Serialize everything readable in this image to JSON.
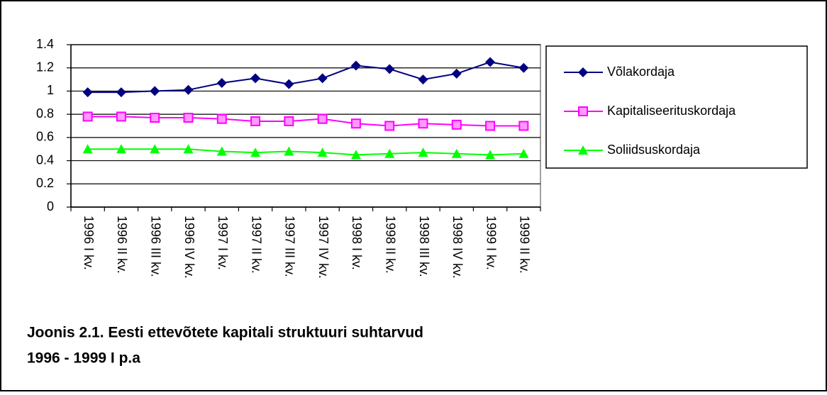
{
  "chart_data": {
    "type": "line",
    "title_lines": [
      "Joonis 2.1. Eesti ettevõtete kapitali struktuuri suhtarvud",
      "1996 - 1999 I p.a"
    ],
    "categories": [
      "1996 I kv.",
      "1996 II kv.",
      "1996 III kv.",
      "1996 IV kv.",
      "1997 I kv.",
      "1997 II kv.",
      "1997 III kv.",
      "1997 IV kv.",
      "1998 I kv.",
      "1998 II kv.",
      "1998 III kv.",
      "1998 IV kv.",
      "1999 I kv.",
      "1999 II kv."
    ],
    "series": [
      {
        "name": "Võlakordaja",
        "color": "#000080",
        "marker": "diamond",
        "values": [
          0.99,
          0.99,
          1.0,
          1.01,
          1.07,
          1.11,
          1.06,
          1.11,
          1.22,
          1.19,
          1.1,
          1.15,
          1.25,
          1.2
        ]
      },
      {
        "name": "Kapitaliseerituskordaja",
        "color": "#ff00ff",
        "marker": "square",
        "values": [
          0.78,
          0.78,
          0.77,
          0.77,
          0.76,
          0.74,
          0.74,
          0.76,
          0.72,
          0.7,
          0.72,
          0.71,
          0.7,
          0.7
        ]
      },
      {
        "name": "Soliidsuskordaja",
        "color": "#00ff00",
        "marker": "triangle",
        "values": [
          0.5,
          0.5,
          0.5,
          0.5,
          0.48,
          0.47,
          0.48,
          0.47,
          0.45,
          0.46,
          0.47,
          0.46,
          0.45,
          0.46
        ]
      }
    ],
    "ylim": [
      0,
      1.4
    ],
    "yticks": [
      0,
      0.2,
      0.4,
      0.6,
      0.8,
      1,
      1.2,
      1.4
    ],
    "grid": true,
    "legend": "right"
  }
}
